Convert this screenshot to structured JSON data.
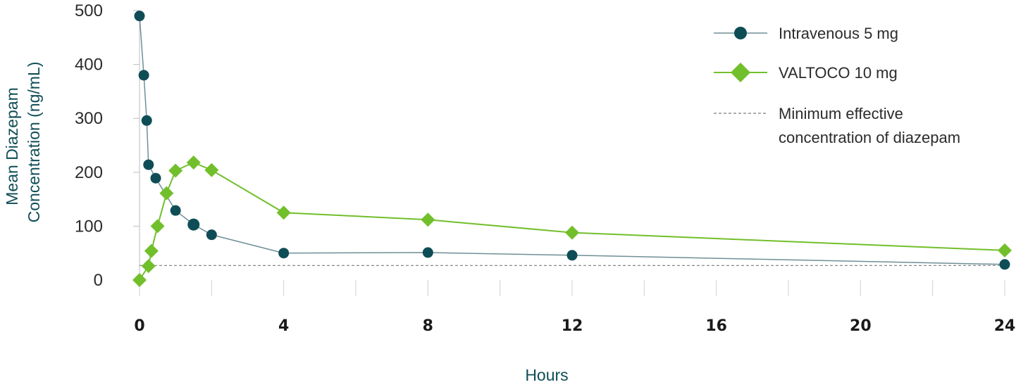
{
  "colors": {
    "iv": "#0f4d56",
    "iv_line": "#6f8f96",
    "valtoco": "#72bf2c",
    "threshold": "#7a7a7a",
    "axis_title": "#0f4d56",
    "axis": "#bdbdbd"
  },
  "chart_data": {
    "type": "line",
    "xlabel": "Hours",
    "ylabel_lines": [
      "Mean Diazepam",
      "Concentration (ng/mL)"
    ],
    "xlim": [
      0,
      24
    ],
    "ylim": [
      0,
      500
    ],
    "x_ticks": [
      0,
      4,
      8,
      12,
      16,
      20,
      24
    ],
    "x_minor_ticks": [
      0,
      2,
      4,
      6,
      8,
      10,
      12,
      14,
      16,
      18,
      20,
      22,
      24
    ],
    "y_ticks": [
      0,
      100,
      200,
      300,
      400,
      500
    ],
    "grid": false,
    "legend_position": "top-right",
    "series": [
      {
        "name": "Intravenous 5 mg",
        "marker": "circle",
        "points": [
          [
            0.0,
            490
          ],
          [
            0.12,
            380
          ],
          [
            0.2,
            296
          ],
          [
            0.25,
            214
          ],
          [
            0.45,
            189
          ],
          [
            1.0,
            129
          ],
          [
            1.5,
            103
          ],
          [
            2.0,
            84
          ],
          [
            4.0,
            50
          ],
          [
            8.0,
            51
          ],
          [
            12.0,
            46
          ],
          [
            24.0,
            29
          ]
        ]
      },
      {
        "name": "VALTOCO 10 mg",
        "marker": "diamond",
        "points": [
          [
            0.0,
            0
          ],
          [
            0.25,
            26
          ],
          [
            0.33,
            54
          ],
          [
            0.5,
            100
          ],
          [
            0.75,
            161
          ],
          [
            1.0,
            203
          ],
          [
            1.5,
            218
          ],
          [
            2.0,
            204
          ],
          [
            4.0,
            125
          ],
          [
            8.0,
            112
          ],
          [
            12.0,
            88
          ],
          [
            24.0,
            55
          ]
        ]
      }
    ],
    "reference_line": {
      "name": "Minimum effective concentration of diazepam",
      "legend_lines": [
        "Minimum effective",
        "concentration of diazepam"
      ],
      "y": 27,
      "style": "dashed"
    }
  }
}
